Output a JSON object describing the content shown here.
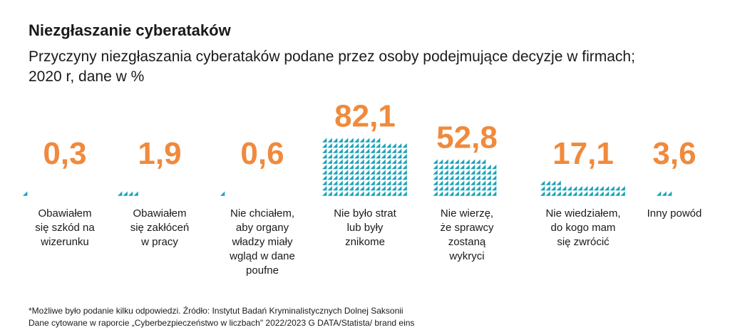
{
  "header": {
    "title": "Niezgłaszanie cyberataków",
    "subtitle": "Przyczyny niezgłaszania cyberataków podane przez osoby podejmujące decyzje w firmach; 2020 r, dane w %"
  },
  "chart_data": {
    "type": "bar",
    "categories": [
      "Obawiałem się szkód na wizerunku",
      "Obawiałem się zakłóceń w pracy",
      "Nie chciałem, aby organy władzy miały wgląd w dane poufne",
      "Nie było strat lub były znikome",
      "Nie wierzę, że sprawcy zostaną wykryci",
      "Nie wiedziałem, do kogo mam się zwrócić",
      "Inny powód"
    ],
    "values": [
      0.3,
      1.9,
      0.6,
      82.1,
      52.8,
      17.1,
      3.6
    ],
    "value_labels": [
      "0,3",
      "1,9",
      "0,6",
      "82,1",
      "52,8",
      "17,1",
      "3,6"
    ],
    "label_lines": [
      [
        "Obawiałem",
        "się szkód na",
        "wizerunku"
      ],
      [
        "Obawiałem",
        "się zakłóceń",
        "w pracy"
      ],
      [
        "Nie chciałem,",
        "aby organy",
        "władzy miały",
        "wgląd w dane",
        "poufne"
      ],
      [
        "Nie było strat",
        "lub były",
        "znikome"
      ],
      [
        "Nie wierzę,",
        "że sprawcy",
        "zostaną",
        "wykryci"
      ],
      [
        "Nie wiedziałem,",
        "do kogo mam",
        "się zwrócić"
      ],
      [
        "Inny powód"
      ]
    ],
    "ylim": [
      0,
      100
    ],
    "grid": false,
    "legend": "none",
    "bar_color": "#1aa3b8",
    "value_color": "#f08a3c"
  },
  "footnote": {
    "line1": "*Możliwe było podanie kilku odpowiedzi. Źródło: Instytut Badań Kryminalistycznych Dolnej Saksonii",
    "line2": "Dane cytowane w raporcie „Cyberbezpieczeństwo w liczbach\" 2022/2023 G DATA/Statista/ brand eins"
  }
}
